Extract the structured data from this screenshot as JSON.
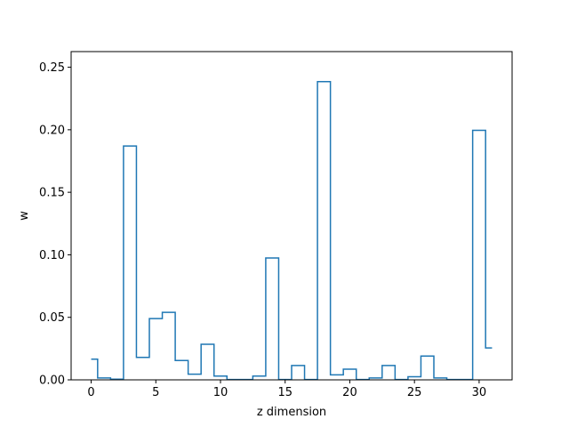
{
  "chart_data": {
    "type": "step",
    "title": "",
    "xlabel": "z dimension",
    "ylabel": "w",
    "xlim": [
      -1.55,
      32.55
    ],
    "ylim": [
      0.0,
      0.2625
    ],
    "xticks": [
      0,
      5,
      10,
      15,
      20,
      25,
      30
    ],
    "yticks": [
      0.0,
      0.05,
      0.1,
      0.15,
      0.2,
      0.25
    ],
    "ytick_labels": [
      "0.00",
      "0.05",
      "0.10",
      "0.15",
      "0.20",
      "0.25"
    ],
    "grid": false,
    "colors": {
      "line": "#1f77b4"
    },
    "series": [
      {
        "x": [
          0,
          1,
          2,
          3,
          4,
          5,
          6,
          7,
          8,
          9,
          10,
          11,
          12,
          13,
          14,
          15,
          16,
          17,
          18,
          19,
          20,
          21,
          22,
          23,
          24,
          25,
          26,
          27,
          28,
          29,
          30,
          31
        ],
        "values": [
          0.0165,
          0.0015,
          0.0005,
          0.187,
          0.018,
          0.049,
          0.054,
          0.0155,
          0.0045,
          0.0285,
          0.003,
          0.0003,
          0.0003,
          0.003,
          0.0975,
          0.0003,
          0.0115,
          0.0003,
          0.2385,
          0.004,
          0.0085,
          0.0003,
          0.0015,
          0.0115,
          0.0003,
          0.0025,
          0.019,
          0.0015,
          0.0003,
          0.0003,
          0.1995,
          0.0255
        ]
      }
    ]
  }
}
